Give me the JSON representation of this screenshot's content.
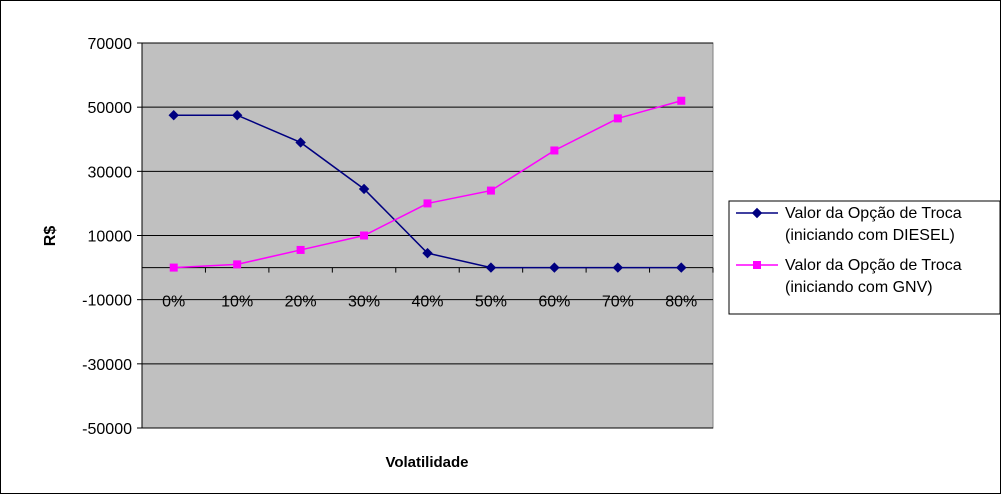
{
  "chart_data": {
    "type": "line",
    "title": "",
    "xlabel": "Volatilidade",
    "ylabel": "R$",
    "categories": [
      "0%",
      "10%",
      "20%",
      "30%",
      "40%",
      "50%",
      "60%",
      "70%",
      "80%"
    ],
    "ylim": [
      -50000,
      70000
    ],
    "yticks": [
      70000,
      50000,
      30000,
      10000,
      -10000,
      -30000,
      -50000
    ],
    "grid": true,
    "legend_position": "right",
    "plot_background": "#c0c0c0",
    "series": [
      {
        "name_line1": "Valor da Opção de Troca",
        "name_line2": "(iniciando com DIESEL)",
        "color": "#000080",
        "marker": "diamond",
        "values": [
          47500,
          47500,
          39000,
          24500,
          4500,
          0,
          0,
          0,
          0
        ]
      },
      {
        "name_line1": "Valor da Opção de Troca",
        "name_line2": "(iniciando com GNV)",
        "color": "#ff00ff",
        "marker": "square",
        "values": [
          0,
          1000,
          5500,
          10000,
          20000,
          24000,
          36500,
          46500,
          52000
        ]
      }
    ]
  }
}
